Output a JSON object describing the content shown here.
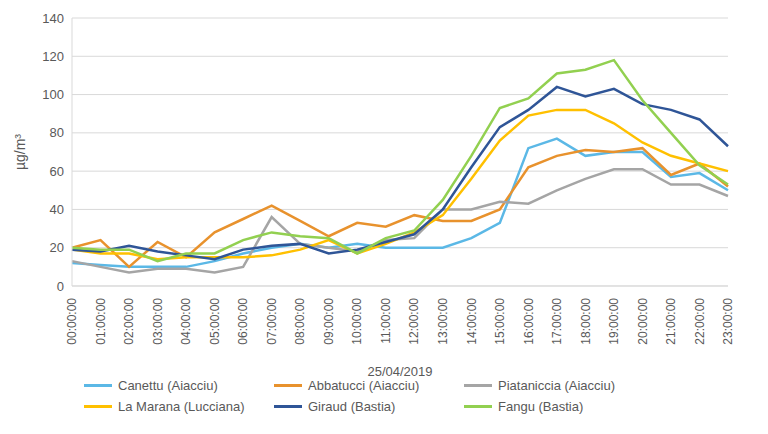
{
  "chart_data": {
    "type": "line",
    "x_label": "25/04/2019",
    "y_label": "µg/m³",
    "categories": [
      "00:00:00",
      "01:00:00",
      "02:00:00",
      "03:00:00",
      "04:00:00",
      "05:00:00",
      "06:00:00",
      "07:00:00",
      "08:00:00",
      "09:00:00",
      "10:00:00",
      "11:00:00",
      "12:00:00",
      "13:00:00",
      "14:00:00",
      "15:00:00",
      "16:00:00",
      "17:00:00",
      "18:00:00",
      "19:00:00",
      "20:00:00",
      "21:00:00",
      "22:00:00",
      "23:00:00"
    ],
    "series": [
      {
        "name": "Canettu (Aiacciu)",
        "color": "#5bb8e6",
        "values": [
          12,
          11,
          10,
          10,
          10,
          13,
          17,
          20,
          22,
          20,
          22,
          20,
          20,
          20,
          25,
          33,
          72,
          77,
          68,
          70,
          70,
          57,
          59,
          50
        ]
      },
      {
        "name": "Abbatucci (Aiacciu)",
        "color": "#e8922d",
        "values": [
          20,
          24,
          10,
          23,
          15,
          28,
          35,
          42,
          34,
          26,
          33,
          31,
          37,
          34,
          34,
          40,
          62,
          68,
          71,
          70,
          72,
          58,
          64,
          52
        ]
      },
      {
        "name": "Piataniccia (Aiacciu)",
        "color": "#a5a5a5",
        "values": [
          13,
          10,
          7,
          9,
          9,
          7,
          10,
          36,
          22,
          20,
          18,
          24,
          25,
          40,
          40,
          44,
          43,
          50,
          56,
          61,
          61,
          53,
          53,
          47
        ]
      },
      {
        "name": "La Marana (Lucciana)",
        "color": "#ffc000",
        "values": [
          19,
          17,
          17,
          14,
          15,
          15,
          15,
          16,
          19,
          24,
          17,
          22,
          28,
          37,
          56,
          76,
          89,
          92,
          92,
          85,
          75,
          68,
          64,
          60
        ]
      },
      {
        "name": "Giraud (Bastia)",
        "color": "#2f5597",
        "values": [
          19,
          18,
          21,
          18,
          16,
          14,
          19,
          21,
          22,
          17,
          19,
          23,
          27,
          40,
          62,
          83,
          92,
          104,
          99,
          103,
          95,
          92,
          87,
          73
        ]
      },
      {
        "name": "Fangu (Bastia)",
        "color": "#92d050",
        "values": [
          20,
          19,
          19,
          13,
          17,
          17,
          24,
          28,
          26,
          25,
          17,
          25,
          29,
          45,
          68,
          93,
          98,
          111,
          113,
          118,
          97,
          80,
          63,
          53
        ]
      }
    ],
    "ylim": [
      0,
      140
    ],
    "yticks": [
      0,
      20,
      40,
      60,
      80,
      100,
      120,
      140
    ],
    "grid": true,
    "legend": "bottom"
  }
}
